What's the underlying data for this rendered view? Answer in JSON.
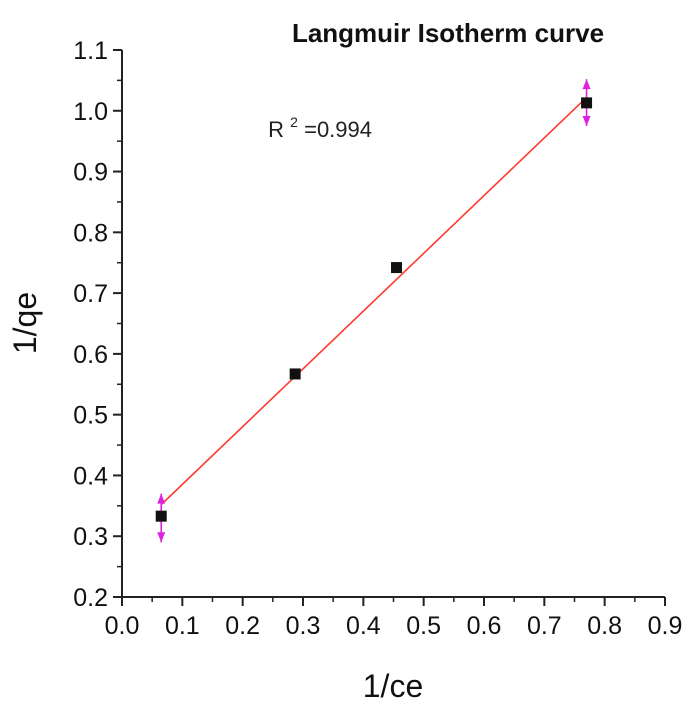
{
  "chart_data": {
    "type": "scatter",
    "title": "Langmuir Isotherm curve",
    "xlabel": "1/ce",
    "ylabel": "1/qe",
    "xlim": [
      0.0,
      0.9
    ],
    "ylim": [
      0.2,
      1.1
    ],
    "xticks": [
      "0.0",
      "0.1",
      "0.2",
      "0.3",
      "0.4",
      "0.5",
      "0.6",
      "0.7",
      "0.8",
      "0.9"
    ],
    "yticks": [
      "0.2",
      "0.3",
      "0.4",
      "0.5",
      "0.6",
      "0.7",
      "0.8",
      "0.9",
      "1.0",
      "1.1"
    ],
    "grid": false,
    "series": [
      {
        "points": [
          {
            "x": 0.065,
            "y": 0.333
          },
          {
            "x": 0.287,
            "y": 0.567
          },
          {
            "x": 0.455,
            "y": 0.742
          },
          {
            "x": 0.77,
            "y": 1.013
          }
        ],
        "marker": "square",
        "color": "#111111"
      }
    ],
    "fit_line": {
      "x": [
        0.065,
        0.77
      ],
      "y": [
        0.352,
        1.022
      ],
      "color": "#ff3b30"
    },
    "error_bars": [
      {
        "x": 0.065,
        "y": 0.333,
        "low": 0.29,
        "high": 0.37
      },
      {
        "x": 0.77,
        "y": 1.013,
        "low": 0.975,
        "high": 1.052
      }
    ],
    "error_bar_color": "#e020e0",
    "annotation": {
      "base": "R",
      "sup": "2",
      "rest": "=0.994",
      "x": 0.35,
      "y": 0.97
    }
  }
}
